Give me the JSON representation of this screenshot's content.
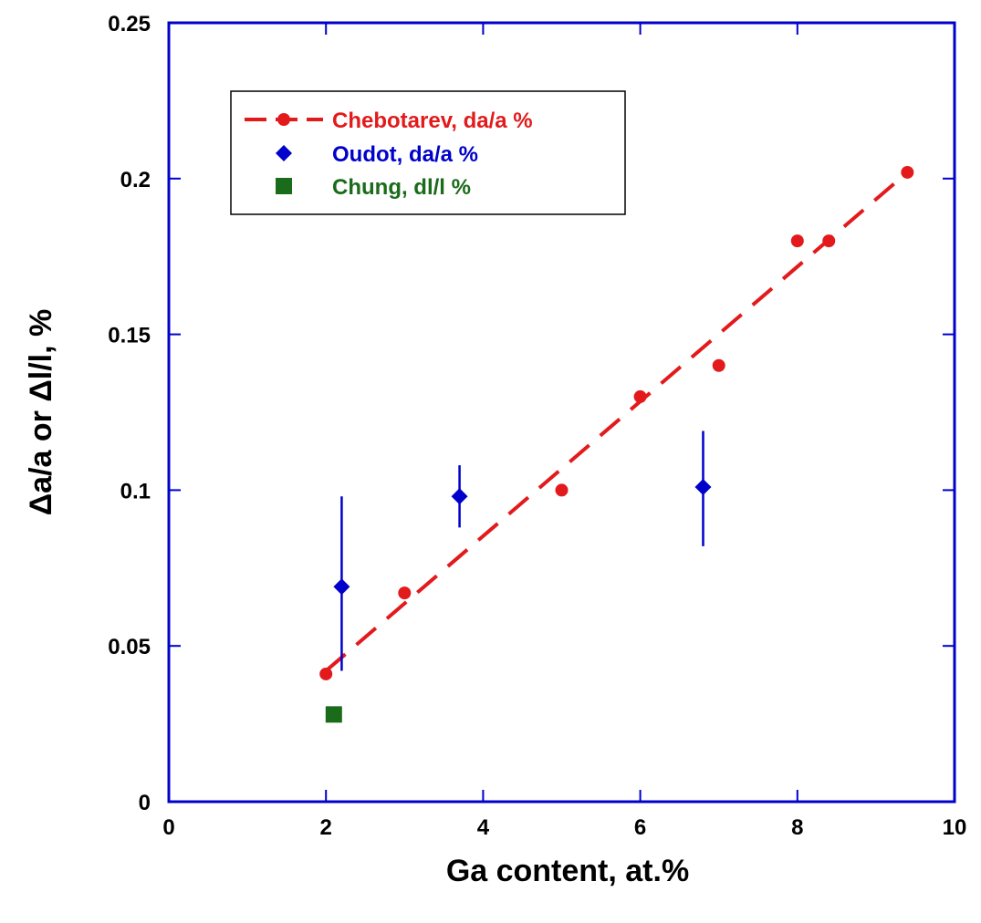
{
  "chart_data": {
    "type": "scatter",
    "title": "",
    "xlabel": "Ga content, at.%",
    "ylabel": "Δa/a  or  Δl/l, %",
    "xlim": [
      0,
      10
    ],
    "ylim": [
      0,
      0.25
    ],
    "xticks": [
      0,
      2,
      4,
      6,
      8,
      10
    ],
    "xtick_labels": [
      "0",
      "2",
      "4",
      "6",
      "8",
      "10"
    ],
    "yticks": [
      0,
      0.05,
      0.1,
      0.15,
      0.2,
      0.25
    ],
    "ytick_labels": [
      "0",
      "0.05",
      "0.1",
      "0.15",
      "0.2",
      "0.25"
    ],
    "grid": false,
    "legend_position": "top-left",
    "axis_color": "#0000cc",
    "series": [
      {
        "name": "Chebotarev, da/a %",
        "marker": "circle",
        "color": "#e31a1c",
        "points": [
          {
            "x": 2.0,
            "y": 0.041
          },
          {
            "x": 3.0,
            "y": 0.067
          },
          {
            "x": 5.0,
            "y": 0.1
          },
          {
            "x": 6.0,
            "y": 0.13
          },
          {
            "x": 7.0,
            "y": 0.14
          },
          {
            "x": 8.0,
            "y": 0.18
          },
          {
            "x": 8.4,
            "y": 0.18
          },
          {
            "x": 9.4,
            "y": 0.202
          }
        ],
        "fit_line": {
          "style": "dashed",
          "from": {
            "x": 2.0,
            "y": 0.042
          },
          "to": {
            "x": 9.4,
            "y": 0.202
          }
        }
      },
      {
        "name": "Oudot, da/a %",
        "marker": "diamond",
        "color": "#0000cc",
        "points": [
          {
            "x": 2.2,
            "y": 0.069,
            "ylow": 0.042,
            "yhigh": 0.098
          },
          {
            "x": 3.7,
            "y": 0.098,
            "ylow": 0.088,
            "yhigh": 0.108
          },
          {
            "x": 6.8,
            "y": 0.101,
            "ylow": 0.082,
            "yhigh": 0.119
          }
        ]
      },
      {
        "name": "Chung, dl/l %",
        "marker": "square",
        "color": "#1a6b1a",
        "points": [
          {
            "x": 2.1,
            "y": 0.028
          }
        ]
      }
    ]
  }
}
